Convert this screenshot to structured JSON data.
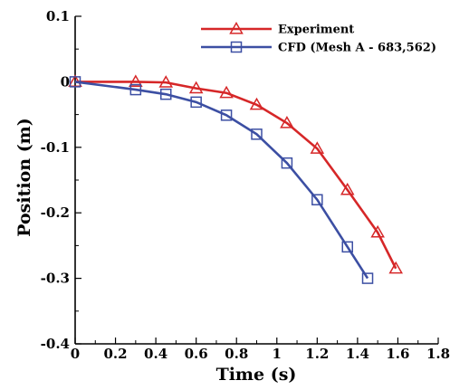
{
  "chart_data": {
    "type": "line",
    "xlabel": "Time (s)",
    "ylabel": "Position (m)",
    "xlim": [
      0,
      1.8
    ],
    "ylim": [
      -0.4,
      0.1
    ],
    "xticks": [
      0,
      0.2,
      0.4,
      0.6,
      0.8,
      1,
      1.2,
      1.4,
      1.6,
      1.8
    ],
    "yticks": [
      -0.4,
      -0.3,
      -0.2,
      -0.1,
      0,
      0.1
    ],
    "xtick_labels": [
      "0",
      "0.2",
      "0.4",
      "0.6",
      "0.8",
      "1",
      "1.2",
      "1.4",
      "1.6",
      "1.8"
    ],
    "ytick_labels": [
      "-0.4",
      "-0.3",
      "-0.2",
      "-0.1",
      "0",
      "0.1"
    ],
    "grid": false,
    "legend_position": "top-right",
    "series": [
      {
        "name": "Experiment",
        "color": "#d62728",
        "marker": "triangle",
        "x": [
          0,
          0.3,
          0.45,
          0.6,
          0.75,
          0.9,
          1.05,
          1.2,
          1.35,
          1.5,
          1.59
        ],
        "y": [
          0,
          0.0,
          -0.001,
          -0.01,
          -0.017,
          -0.035,
          -0.063,
          -0.102,
          -0.165,
          -0.23,
          -0.285
        ]
      },
      {
        "name": "CFD (Mesh A - 683,562)",
        "color": "#3c4fa3",
        "marker": "square",
        "x": [
          0,
          0.3,
          0.45,
          0.6,
          0.75,
          0.9,
          1.05,
          1.2,
          1.35,
          1.45
        ],
        "y": [
          0,
          -0.012,
          -0.019,
          -0.031,
          -0.051,
          -0.08,
          -0.124,
          -0.18,
          -0.252,
          -0.3
        ]
      }
    ]
  }
}
